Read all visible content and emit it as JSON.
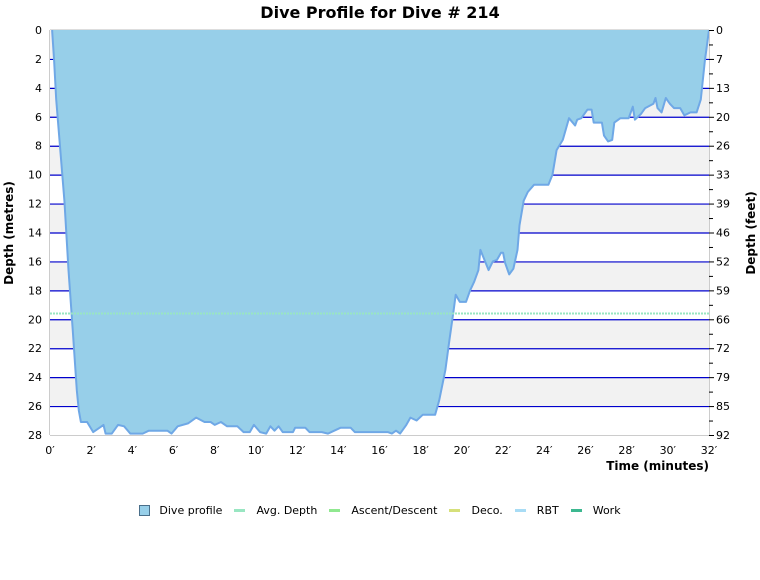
{
  "title": "Dive Profile for Dive # 214",
  "colors": {
    "profile_fill": "#97cfe9",
    "profile_stroke": "#6fa8e6",
    "band_gray": "#f2f2f2",
    "grid_line": "#0000cc",
    "avg_depth": "#99e6c2",
    "ascent_descent": "#90e890",
    "deco": "#d6e07a",
    "rbt": "#a8dcf5",
    "work": "#3cb890",
    "axis": "#cccccc"
  },
  "legend": [
    {
      "label": "Dive profile",
      "type": "box",
      "color": "#97cfe9"
    },
    {
      "label": "Avg. Depth",
      "type": "line",
      "color": "#99e6c2"
    },
    {
      "label": "Ascent/Descent",
      "type": "line",
      "color": "#90e890"
    },
    {
      "label": "Deco.",
      "type": "line",
      "color": "#d6e07a"
    },
    {
      "label": "RBT",
      "type": "line",
      "color": "#a8dcf5"
    },
    {
      "label": "Work",
      "type": "line",
      "color": "#3cb890"
    }
  ],
  "chart_data": {
    "type": "area",
    "title": "Dive Profile for Dive # 214",
    "xlabel": "Time (minutes)",
    "ylabel": "Depth (metres)",
    "y2label": "Depth (feet)",
    "xlim": [
      0,
      32
    ],
    "ylim": [
      0,
      28
    ],
    "y_inverted": true,
    "x_ticks": [
      "0′",
      "2′",
      "4′",
      "6′",
      "8′",
      "10′",
      "12′",
      "14′",
      "16′",
      "18′",
      "20′",
      "22′",
      "24′",
      "26′",
      "28′",
      "30′",
      "32′"
    ],
    "x_tick_values": [
      0,
      2,
      4,
      6,
      8,
      10,
      12,
      14,
      16,
      18,
      20,
      22,
      24,
      26,
      28,
      30,
      32
    ],
    "y_ticks": [
      0,
      2,
      4,
      6,
      8,
      10,
      12,
      14,
      16,
      18,
      20,
      22,
      24,
      26,
      28
    ],
    "y2_ticks": [
      "0",
      "7",
      "13",
      "20",
      "26",
      "33",
      "39",
      "46",
      "52",
      "59",
      "66",
      "72",
      "79",
      "85",
      "92"
    ],
    "y2_tick_depths_m": [
      0,
      2,
      4,
      6,
      8,
      10,
      12,
      14,
      16,
      18,
      20,
      22,
      24,
      26,
      28
    ],
    "grid": "horizontal bands every 2 m, alternating gray/white",
    "legend_position": "bottom",
    "avg_depth_m": 19.6,
    "series": [
      {
        "name": "Dive profile",
        "time_min": [
          0.1,
          0.2,
          0.3,
          0.5,
          0.7,
          0.9,
          1.1,
          1.3,
          1.4,
          1.5,
          1.8,
          2.1,
          2.4,
          2.6,
          2.7,
          3.0,
          3.3,
          3.6,
          3.9,
          4.5,
          4.8,
          5.7,
          5.9,
          6.2,
          6.7,
          7.1,
          7.5,
          7.8,
          8.0,
          8.3,
          8.6,
          9.1,
          9.4,
          9.7,
          9.9,
          10.2,
          10.5,
          10.7,
          10.9,
          11.1,
          11.3,
          11.8,
          11.9,
          12.4,
          12.6,
          13.2,
          13.5,
          13.8,
          14.1,
          14.6,
          14.8,
          16.4,
          16.6,
          16.8,
          17.0,
          17.3,
          17.5,
          17.8,
          18.1,
          18.7,
          18.9,
          19.2,
          19.4,
          19.6,
          19.7,
          19.9,
          20.2,
          20.4,
          20.6,
          20.8,
          20.9,
          21.1,
          21.3,
          21.5,
          21.7,
          21.9,
          22.0,
          22.1,
          22.3,
          22.5,
          22.7,
          22.8,
          23.0,
          23.2,
          23.5,
          24.2,
          24.4,
          24.6,
          24.9,
          25.2,
          25.5,
          25.6,
          25.8,
          26.1,
          26.3,
          26.4,
          26.8,
          26.9,
          27.1,
          27.3,
          27.4,
          27.7,
          28.1,
          28.3,
          28.4,
          28.7,
          28.9,
          29.3,
          29.4,
          29.5,
          29.7,
          29.9,
          30.1,
          30.3,
          30.6,
          30.8,
          31.1,
          31.4,
          31.6,
          31.8,
          32.0
        ],
        "depth_m": [
          0,
          2.1,
          4.8,
          8.3,
          11.8,
          16.6,
          20.7,
          24.9,
          26.3,
          27.1,
          27.1,
          27.8,
          27.5,
          27.3,
          27.9,
          27.9,
          27.3,
          27.4,
          27.9,
          27.9,
          27.7,
          27.7,
          27.9,
          27.4,
          27.2,
          26.8,
          27.1,
          27.1,
          27.3,
          27.1,
          27.4,
          27.4,
          27.8,
          27.8,
          27.3,
          27.8,
          27.9,
          27.4,
          27.7,
          27.4,
          27.8,
          27.8,
          27.5,
          27.5,
          27.8,
          27.8,
          27.9,
          27.7,
          27.5,
          27.5,
          27.8,
          27.8,
          27.9,
          27.7,
          27.9,
          27.3,
          26.8,
          27.0,
          26.6,
          26.6,
          25.6,
          23.5,
          21.4,
          19.4,
          18.3,
          18.8,
          18.8,
          18.0,
          17.4,
          16.6,
          15.2,
          15.9,
          16.6,
          16.0,
          15.9,
          15.4,
          15.4,
          16.1,
          16.9,
          16.5,
          15.2,
          13.5,
          11.8,
          11.2,
          10.7,
          10.7,
          10.0,
          8.3,
          7.6,
          6.1,
          6.6,
          6.2,
          6.1,
          5.5,
          5.5,
          6.4,
          6.4,
          7.3,
          7.7,
          7.6,
          6.4,
          6.1,
          6.1,
          5.3,
          6.2,
          5.8,
          5.4,
          5.1,
          4.7,
          5.4,
          5.7,
          4.7,
          5.1,
          5.4,
          5.4,
          5.9,
          5.7,
          5.7,
          4.8,
          2.1,
          0
        ]
      },
      {
        "name": "Avg. Depth",
        "time_min": [
          0,
          32
        ],
        "depth_m": [
          19.6,
          19.6
        ]
      }
    ]
  }
}
